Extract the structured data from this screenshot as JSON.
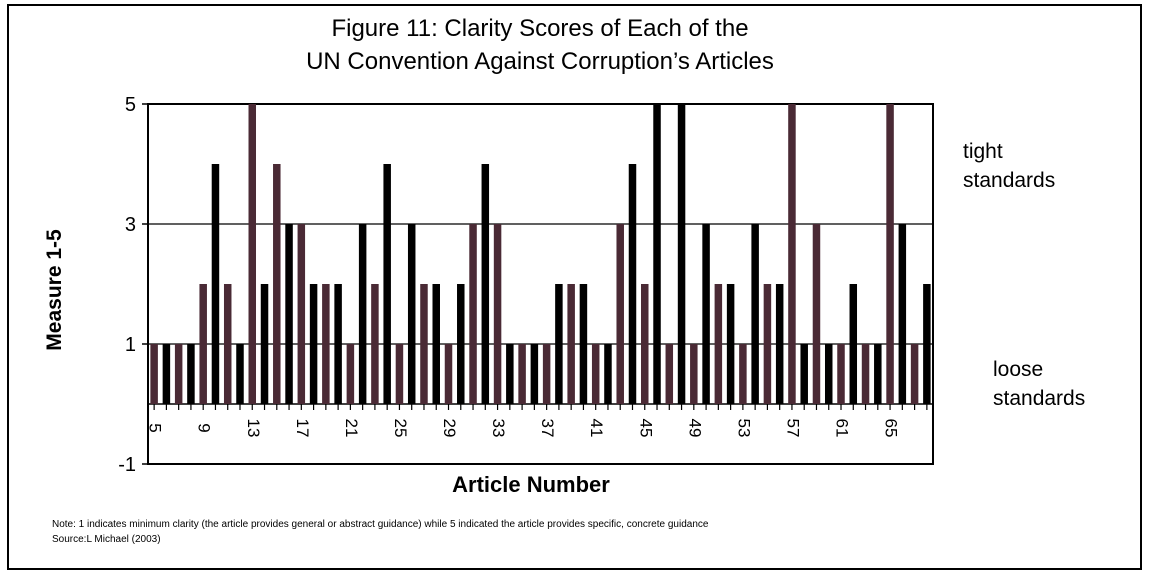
{
  "chart_data": {
    "type": "bar",
    "title_line1": "Figure 11: Clarity Scores of Each of the",
    "title_line2": "UN Convention Against Corruption’s Articles",
    "xlabel": "Article Number",
    "ylabel": "Measure 1-5",
    "ylim": [
      -1,
      5
    ],
    "yticks": [
      "5",
      "3",
      "1",
      "-1"
    ],
    "grid": "horizontal at 1, 3, 5",
    "bar_colors": [
      "#4a2a35",
      "#000000"
    ],
    "x_tick_labels": [
      "5",
      "9",
      "13",
      "17",
      "21",
      "25",
      "29",
      "33",
      "37",
      "41",
      "45",
      "49",
      "53",
      "57",
      "61",
      "65"
    ],
    "categories": [
      "5",
      "6",
      "7",
      "8",
      "9",
      "10",
      "11",
      "12",
      "13",
      "14",
      "15",
      "16",
      "17",
      "18",
      "19",
      "20",
      "21",
      "22",
      "23",
      "24",
      "25",
      "26",
      "27",
      "28",
      "29",
      "30",
      "31",
      "32",
      "33",
      "34",
      "35",
      "36",
      "37",
      "38",
      "39",
      "40",
      "41",
      "42",
      "43",
      "44",
      "45",
      "46",
      "47",
      "48",
      "49",
      "50",
      "51",
      "52",
      "53",
      "54",
      "55",
      "56",
      "57",
      "58",
      "59",
      "60",
      "61",
      "62",
      "63",
      "64",
      "65",
      "66",
      "67",
      "68"
    ],
    "values": [
      1,
      1,
      1,
      1,
      2,
      4,
      2,
      1,
      5,
      2,
      4,
      3,
      3,
      2,
      2,
      2,
      1,
      3,
      2,
      4,
      1,
      3,
      2,
      2,
      1,
      2,
      3,
      4,
      3,
      1,
      1,
      1,
      1,
      2,
      2,
      2,
      1,
      1,
      3,
      4,
      2,
      5,
      1,
      5,
      1,
      3,
      2,
      2,
      1,
      3,
      2,
      2,
      5,
      1,
      3,
      1,
      1,
      2,
      1,
      1,
      5,
      3,
      1,
      2
    ]
  },
  "annotations": {
    "tight": [
      "tight",
      "standards"
    ],
    "loose": [
      "loose",
      "standards"
    ]
  },
  "note": {
    "line1": "Note: 1 indicates minimum clarity (the article provides general or abstract guidance) while 5 indicated the article provides specific, concrete guidance",
    "line2": "Source:L Michael (2003)"
  }
}
